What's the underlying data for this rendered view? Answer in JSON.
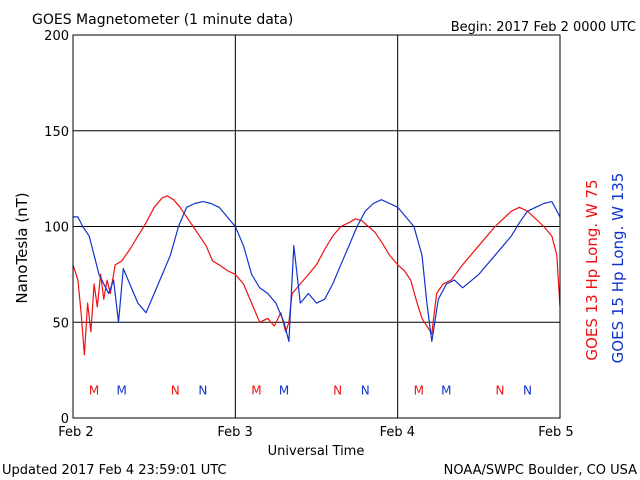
{
  "title": "GOES Magnetometer (1 minute data)",
  "begin": "Begin:  2017 Feb 2 0000 UTC",
  "updated": "Updated 2017 Feb  4 23:59:01 UTC",
  "credit": "NOAA/SWPC Boulder, CO USA",
  "chart_data": {
    "type": "line",
    "title": "GOES Magnetometer (1 minute data)",
    "xlabel": "Universal Time",
    "ylabel": "NanoTesla (nT)",
    "xlim": [
      0,
      3
    ],
    "ylim": [
      0,
      200
    ],
    "grid": true,
    "x_ticks": [
      {
        "value": 0,
        "label": "Feb 2"
      },
      {
        "value": 1,
        "label": "Feb 3"
      },
      {
        "value": 2,
        "label": "Feb 4"
      },
      {
        "value": 3,
        "label": "Feb 5"
      }
    ],
    "y_ticks": [
      0,
      50,
      100,
      150,
      200
    ],
    "series": [
      {
        "name": "GOES 13 Hp  Long. W 75",
        "color": "#ee1111",
        "x": [
          0.0,
          0.03,
          0.05,
          0.07,
          0.09,
          0.11,
          0.13,
          0.15,
          0.17,
          0.19,
          0.21,
          0.23,
          0.26,
          0.3,
          0.35,
          0.4,
          0.45,
          0.5,
          0.55,
          0.58,
          0.62,
          0.66,
          0.7,
          0.74,
          0.78,
          0.82,
          0.86,
          0.9,
          0.95,
          1.0,
          1.05,
          1.1,
          1.15,
          1.2,
          1.24,
          1.28,
          1.31,
          1.33,
          1.35,
          1.4,
          1.45,
          1.5,
          1.55,
          1.6,
          1.65,
          1.7,
          1.74,
          1.78,
          1.82,
          1.86,
          1.9,
          1.95,
          2.0,
          2.04,
          2.08,
          2.12,
          2.15,
          2.18,
          2.21,
          2.24,
          2.28,
          2.33,
          2.4,
          2.5,
          2.6,
          2.7,
          2.75,
          2.8,
          2.85,
          2.9,
          2.95,
          2.98,
          3.0
        ],
        "values": [
          80,
          72,
          55,
          33,
          60,
          45,
          70,
          58,
          75,
          62,
          72,
          65,
          80,
          82,
          88,
          95,
          102,
          110,
          115,
          116,
          114,
          110,
          105,
          100,
          95,
          90,
          82,
          80,
          77,
          75,
          70,
          60,
          50,
          52,
          48,
          55,
          45,
          50,
          65,
          70,
          75,
          80,
          88,
          95,
          100,
          102,
          104,
          103,
          100,
          97,
          92,
          85,
          80,
          77,
          72,
          60,
          52,
          48,
          44,
          65,
          70,
          72,
          80,
          90,
          100,
          108,
          110,
          108,
          104,
          100,
          95,
          85,
          58
        ]
      },
      {
        "name": "GOES 15 Hp  Long. W 135",
        "color": "#1133cc",
        "x": [
          0.0,
          0.03,
          0.06,
          0.1,
          0.13,
          0.16,
          0.19,
          0.22,
          0.25,
          0.28,
          0.31,
          0.35,
          0.4,
          0.45,
          0.5,
          0.55,
          0.6,
          0.65,
          0.7,
          0.75,
          0.8,
          0.85,
          0.9,
          0.95,
          1.0,
          1.05,
          1.1,
          1.15,
          1.2,
          1.25,
          1.3,
          1.33,
          1.36,
          1.4,
          1.45,
          1.5,
          1.55,
          1.6,
          1.65,
          1.7,
          1.75,
          1.8,
          1.85,
          1.9,
          1.95,
          2.0,
          2.05,
          2.1,
          2.15,
          2.18,
          2.21,
          2.25,
          2.3,
          2.35,
          2.4,
          2.5,
          2.6,
          2.7,
          2.75,
          2.8,
          2.85,
          2.9,
          2.95,
          3.0
        ],
        "values": [
          105,
          105,
          100,
          95,
          85,
          75,
          70,
          65,
          72,
          50,
          78,
          70,
          60,
          55,
          65,
          75,
          85,
          100,
          110,
          112,
          113,
          112,
          110,
          105,
          100,
          90,
          75,
          68,
          65,
          60,
          50,
          40,
          90,
          60,
          65,
          60,
          62,
          70,
          80,
          90,
          100,
          108,
          112,
          114,
          112,
          110,
          105,
          100,
          85,
          60,
          40,
          62,
          70,
          72,
          68,
          75,
          85,
          95,
          102,
          108,
          110,
          112,
          113,
          105
        ]
      }
    ],
    "markers": [
      {
        "label": "M",
        "color": "#ee1111",
        "x": 0.13
      },
      {
        "label": "M",
        "color": "#1133cc",
        "x": 0.3
      },
      {
        "label": "N",
        "color": "#ee1111",
        "x": 0.63
      },
      {
        "label": "N",
        "color": "#1133cc",
        "x": 0.8
      },
      {
        "label": "M",
        "color": "#ee1111",
        "x": 1.13
      },
      {
        "label": "M",
        "color": "#1133cc",
        "x": 1.3
      },
      {
        "label": "N",
        "color": "#ee1111",
        "x": 1.63
      },
      {
        "label": "N",
        "color": "#1133cc",
        "x": 1.8
      },
      {
        "label": "M",
        "color": "#ee1111",
        "x": 2.13
      },
      {
        "label": "M",
        "color": "#1133cc",
        "x": 2.3
      },
      {
        "label": "N",
        "color": "#ee1111",
        "x": 2.63
      },
      {
        "label": "N",
        "color": "#1133cc",
        "x": 2.8
      }
    ]
  }
}
